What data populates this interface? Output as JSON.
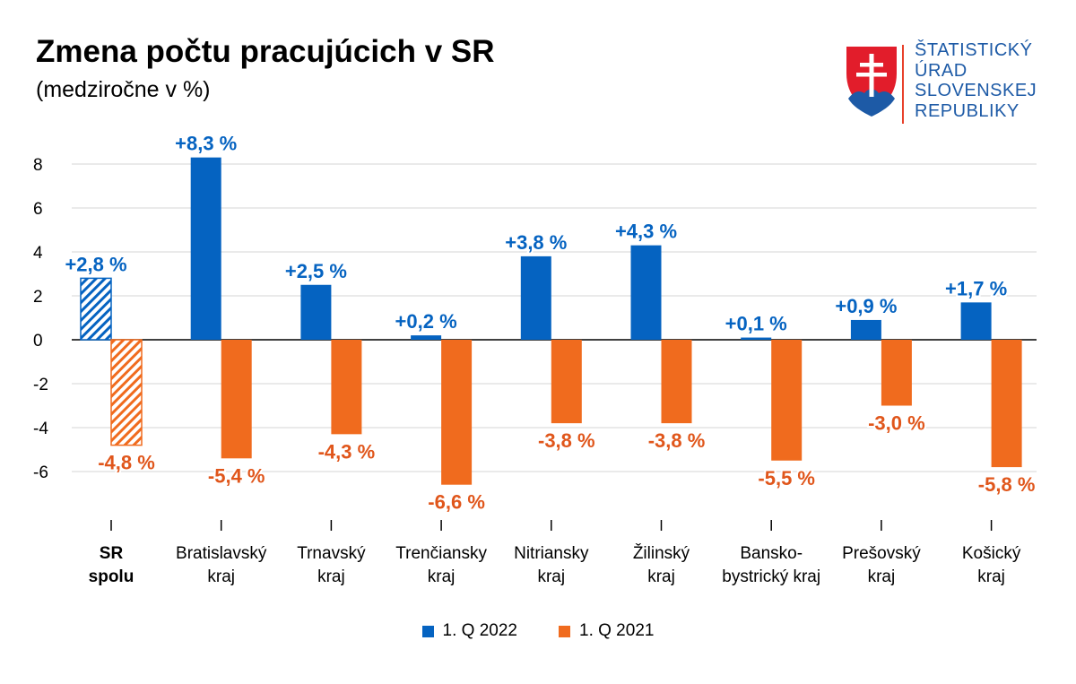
{
  "header": {
    "title": "Zmena počtu pracujúcich v SR",
    "subtitle": "(medziročne v %)"
  },
  "logo": {
    "lines": [
      "ŠTATISTICKÝ",
      "ÚRAD",
      "SLOVENSKEJ",
      "REPUBLIKY"
    ],
    "text_color": "#1d5aa6",
    "accent_color": "#e8412b"
  },
  "chart_data": {
    "type": "bar",
    "title": "Zmena počtu pracujúcich v SR",
    "subtitle": "(medziročne v %)",
    "xlabel": "",
    "ylabel": "",
    "ylim": [
      -8,
      9
    ],
    "yticks": [
      8,
      6,
      4,
      2,
      0,
      -2,
      -4,
      -6
    ],
    "ytick_labels": [
      "8",
      "6",
      "4",
      "2",
      "0",
      "-2",
      "-4",
      "-6"
    ],
    "grid": true,
    "legend_position": "bottom",
    "categories": [
      [
        "SR",
        "spolu"
      ],
      [
        "Bratislavský",
        "kraj"
      ],
      [
        "Trnavský",
        "kraj"
      ],
      [
        "Trenčiansky",
        "kraj"
      ],
      [
        "Nitriansky",
        "kraj"
      ],
      [
        "Žilinský",
        "kraj"
      ],
      [
        "Bansko-",
        "bystrický kraj"
      ],
      [
        "Prešovský",
        "kraj"
      ],
      [
        "Košický",
        "kraj"
      ]
    ],
    "series": [
      {
        "name": "1. Q 2022",
        "color": "#0563c1",
        "values": [
          2.8,
          8.3,
          2.5,
          0.2,
          3.8,
          4.3,
          0.1,
          0.9,
          1.7
        ],
        "labels": [
          "+2,8 %",
          "+8,3 %",
          "+2,5 %",
          "+0,2 %",
          "+3,8 %",
          "+4,3 %",
          "+0,1 %",
          "+0,9 %",
          "+1,7 %"
        ]
      },
      {
        "name": "1. Q 2021",
        "color": "#f06b1e",
        "label_color": "#e0561b",
        "values": [
          -4.8,
          -5.4,
          -4.3,
          -6.6,
          -3.8,
          -3.8,
          -5.5,
          -3.0,
          -5.8
        ],
        "labels": [
          "-4,8 %",
          "-5,4 %",
          "-4,3 %",
          "-6,6 %",
          "-3,8 %",
          "-3,8 %",
          "-5,5 %",
          "-3,0 %",
          "-5,8 %"
        ]
      }
    ]
  }
}
